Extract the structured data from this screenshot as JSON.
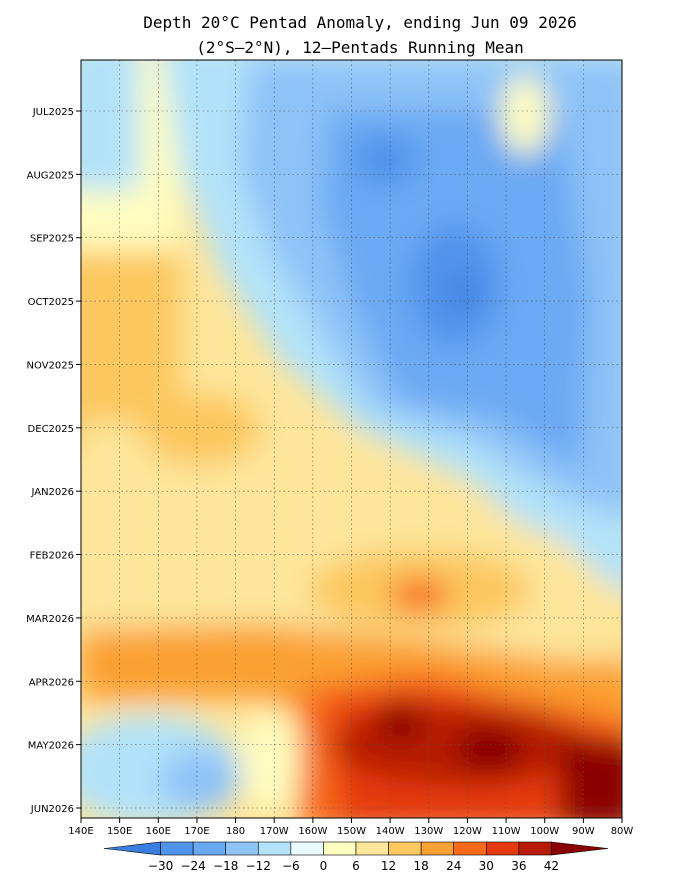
{
  "chart_data": {
    "type": "heatmap",
    "title": "Depth 20°C Pentad Anomaly, ending Jun 09 2026",
    "subtitle": "(2°S–2°N), 12–Pentads Running Mean",
    "xlabel": "",
    "ylabel": "",
    "x_ticks": [
      "140E",
      "150E",
      "160E",
      "170E",
      "180",
      "170W",
      "160W",
      "150W",
      "140W",
      "130W",
      "120W",
      "110W",
      "100W",
      "90W",
      "80W"
    ],
    "y_ticks": [
      "JUL2025",
      "AUG2025",
      "SEP2025",
      "OCT2025",
      "NOV2025",
      "DEC2025",
      "JAN2026",
      "FEB2026",
      "MAR2026",
      "APR2026",
      "MAY2026",
      "JUN2026"
    ],
    "colorbar": {
      "levels": [
        -30,
        -24,
        -18,
        -12,
        -6,
        0,
        6,
        12,
        18,
        24,
        30,
        36,
        42
      ],
      "labels": [
        "−30",
        "−24",
        "−18",
        "−12",
        "−6",
        "0",
        "6",
        "12",
        "18",
        "24",
        "30",
        "36",
        "42"
      ],
      "colors": [
        "#3a7fe0",
        "#4f93ec",
        "#6aa9f3",
        "#8ec3f8",
        "#b2e2f9",
        "#e9fbff",
        "#fffdc0",
        "#fde59a",
        "#fcc75e",
        "#fba032",
        "#f86a1a",
        "#e63a0e",
        "#b71a06",
        "#8a0000"
      ]
    },
    "grid": true,
    "description_regions": [
      {
        "region": "140E-180 Jul-Nov 2025",
        "anomaly": [
          0,
          12
        ]
      },
      {
        "region": "170W-90W Aug-Dec 2025",
        "anomaly": [
          -18,
          -6
        ]
      },
      {
        "region": "170W-100W Jan-Feb 2026",
        "anomaly": [
          6,
          18
        ]
      },
      {
        "region": "150W-80W Apr-Jun 2026",
        "anomaly": [
          30,
          42
        ]
      },
      {
        "region": "140E-170W May-Jun 2026",
        "anomaly": [
          -12,
          0
        ]
      }
    ]
  }
}
